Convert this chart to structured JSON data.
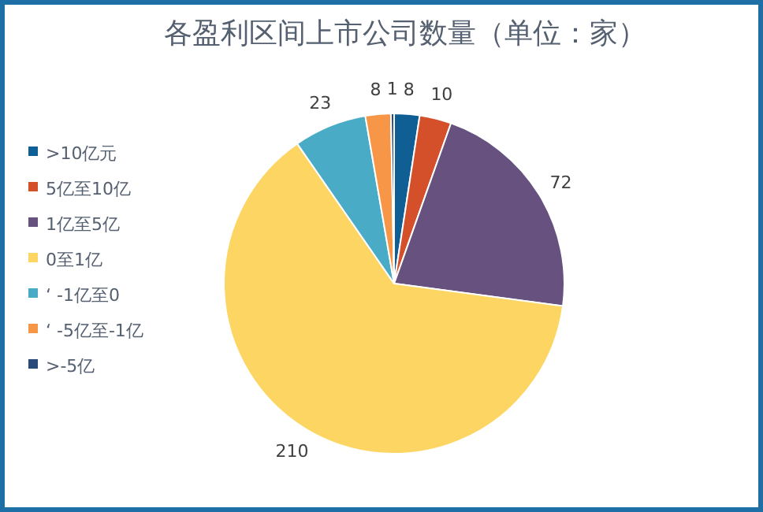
{
  "chart_data": {
    "type": "pie",
    "title": "各盈利区间上市公司数量（单位：家）",
    "categories": [
      ">10亿元",
      "5亿至10亿",
      "1亿至5亿",
      "0至1亿",
      "‘ -1亿至0",
      "‘ -5亿至-1亿",
      ">-5亿"
    ],
    "values": [
      8,
      10,
      72,
      210,
      23,
      8,
      1
    ],
    "colors": [
      "#0f5e94",
      "#d4502b",
      "#67527f",
      "#fdd562",
      "#4aabc7",
      "#f79646",
      "#2a4a7a"
    ],
    "data_labels": true,
    "legend": "left"
  }
}
